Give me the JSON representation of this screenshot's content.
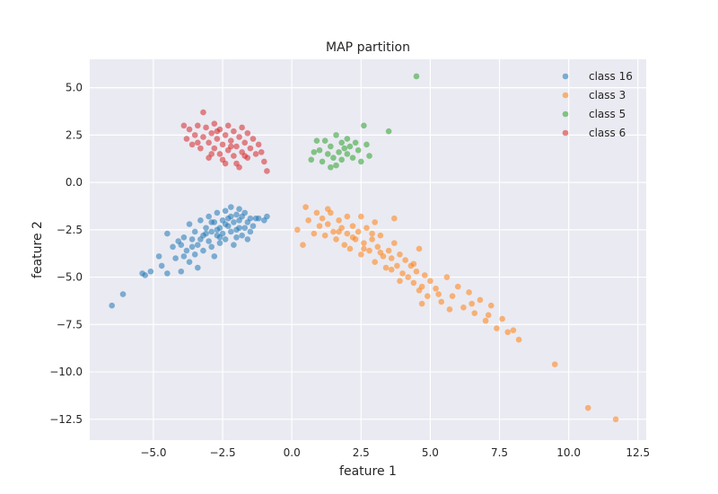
{
  "chart_data": {
    "type": "scatter",
    "title": "MAP partition",
    "xlabel": "feature 1",
    "ylabel": "feature 2",
    "xlim": [
      -7.3,
      12.8
    ],
    "ylim": [
      -13.6,
      6.5
    ],
    "xticks": [
      -5.0,
      -2.5,
      0.0,
      2.5,
      5.0,
      7.5,
      10.0,
      12.5
    ],
    "xtick_labels": [
      "−5.0",
      "−2.5",
      "0.0",
      "2.5",
      "5.0",
      "7.5",
      "10.0",
      "12.5"
    ],
    "yticks": [
      5.0,
      2.5,
      0.0,
      -2.5,
      -5.0,
      -7.5,
      -10.0,
      -12.5
    ],
    "ytick_labels": [
      "5.0",
      "2.5",
      "0.0",
      "−2.5",
      "−5.0",
      "−7.5",
      "−10.0",
      "−12.5"
    ],
    "grid": true,
    "legend_position": "top-right",
    "series": [
      {
        "name": "class 16",
        "color": "#1f77b4",
        "points": [
          [
            -6.5,
            -6.5
          ],
          [
            -6.1,
            -5.9
          ],
          [
            -5.4,
            -4.8
          ],
          [
            -5.3,
            -4.9
          ],
          [
            -5.1,
            -4.7
          ],
          [
            -4.8,
            -3.9
          ],
          [
            -4.7,
            -4.4
          ],
          [
            -4.5,
            -4.8
          ],
          [
            -4.5,
            -2.7
          ],
          [
            -4.3,
            -3.4
          ],
          [
            -4.2,
            -4.0
          ],
          [
            -4.1,
            -3.1
          ],
          [
            -4.0,
            -4.7
          ],
          [
            -3.9,
            -2.9
          ],
          [
            -3.8,
            -3.6
          ],
          [
            -3.7,
            -4.2
          ],
          [
            -3.7,
            -2.2
          ],
          [
            -3.6,
            -3.0
          ],
          [
            -3.5,
            -3.8
          ],
          [
            -3.5,
            -2.6
          ],
          [
            -3.4,
            -4.5
          ],
          [
            -3.4,
            -3.3
          ],
          [
            -3.3,
            -2.0
          ],
          [
            -3.2,
            -2.8
          ],
          [
            -3.2,
            -3.6
          ],
          [
            -3.1,
            -2.4
          ],
          [
            -3.0,
            -3.1
          ],
          [
            -3.0,
            -1.8
          ],
          [
            -2.9,
            -2.6
          ],
          [
            -2.9,
            -3.4
          ],
          [
            -2.8,
            -2.1
          ],
          [
            -2.8,
            -3.9
          ],
          [
            -2.7,
            -2.8
          ],
          [
            -2.7,
            -1.6
          ],
          [
            -2.6,
            -2.4
          ],
          [
            -2.6,
            -3.2
          ],
          [
            -2.5,
            -2.0
          ],
          [
            -2.5,
            -2.7
          ],
          [
            -2.4,
            -1.5
          ],
          [
            -2.4,
            -3.0
          ],
          [
            -2.3,
            -2.3
          ],
          [
            -2.3,
            -1.9
          ],
          [
            -2.2,
            -2.6
          ],
          [
            -2.2,
            -1.3
          ],
          [
            -2.1,
            -2.1
          ],
          [
            -2.1,
            -3.3
          ],
          [
            -2.0,
            -1.7
          ],
          [
            -2.0,
            -2.5
          ],
          [
            -1.9,
            -2.0
          ],
          [
            -1.9,
            -1.4
          ],
          [
            -1.8,
            -2.8
          ],
          [
            -1.8,
            -1.8
          ],
          [
            -1.7,
            -2.4
          ],
          [
            -1.7,
            -1.6
          ],
          [
            -1.6,
            -2.1
          ],
          [
            -1.6,
            -3.0
          ],
          [
            -1.5,
            -1.9
          ],
          [
            -1.5,
            -2.6
          ],
          [
            -1.4,
            -2.3
          ],
          [
            -1.3,
            -1.9
          ],
          [
            -2.4,
            -2.2
          ],
          [
            -2.6,
            -2.9
          ],
          [
            -2.9,
            -2.1
          ],
          [
            -3.3,
            -3.0
          ],
          [
            -3.6,
            -3.4
          ],
          [
            -2.2,
            -1.8
          ],
          [
            -2.0,
            -2.9
          ],
          [
            -1.9,
            -2.4
          ],
          [
            -2.7,
            -2.5
          ],
          [
            -3.1,
            -2.7
          ],
          [
            -1.2,
            -1.9
          ],
          [
            -1.0,
            -2.0
          ],
          [
            -0.9,
            -1.8
          ],
          [
            -4.0,
            -3.3
          ],
          [
            -3.9,
            -3.9
          ]
        ]
      },
      {
        "name": "class 3",
        "color": "#ff7f0e",
        "points": [
          [
            0.2,
            -2.5
          ],
          [
            0.4,
            -3.3
          ],
          [
            0.5,
            -1.3
          ],
          [
            0.6,
            -2.0
          ],
          [
            0.8,
            -2.7
          ],
          [
            0.9,
            -1.6
          ],
          [
            1.0,
            -2.3
          ],
          [
            1.1,
            -1.9
          ],
          [
            1.2,
            -2.8
          ],
          [
            1.3,
            -2.2
          ],
          [
            1.4,
            -1.6
          ],
          [
            1.5,
            -2.6
          ],
          [
            1.6,
            -3.0
          ],
          [
            1.7,
            -2.0
          ],
          [
            1.8,
            -2.4
          ],
          [
            1.9,
            -3.3
          ],
          [
            2.0,
            -2.7
          ],
          [
            2.0,
            -1.8
          ],
          [
            2.1,
            -3.5
          ],
          [
            2.2,
            -2.3
          ],
          [
            2.3,
            -3.0
          ],
          [
            2.4,
            -2.6
          ],
          [
            2.5,
            -3.8
          ],
          [
            2.6,
            -3.2
          ],
          [
            2.7,
            -2.4
          ],
          [
            2.8,
            -3.6
          ],
          [
            2.9,
            -3.0
          ],
          [
            3.0,
            -4.2
          ],
          [
            3.1,
            -3.4
          ],
          [
            3.2,
            -2.8
          ],
          [
            3.3,
            -3.9
          ],
          [
            3.4,
            -4.5
          ],
          [
            3.5,
            -3.6
          ],
          [
            3.6,
            -4.0
          ],
          [
            3.7,
            -3.2
          ],
          [
            3.8,
            -4.4
          ],
          [
            3.9,
            -3.8
          ],
          [
            4.0,
            -4.8
          ],
          [
            4.1,
            -4.1
          ],
          [
            4.2,
            -5.0
          ],
          [
            4.3,
            -4.4
          ],
          [
            4.4,
            -5.3
          ],
          [
            4.5,
            -4.7
          ],
          [
            4.6,
            -3.5
          ],
          [
            4.7,
            -5.5
          ],
          [
            4.8,
            -4.9
          ],
          [
            4.9,
            -6.0
          ],
          [
            5.0,
            -5.2
          ],
          [
            5.2,
            -5.6
          ],
          [
            5.4,
            -6.3
          ],
          [
            5.6,
            -5.0
          ],
          [
            5.8,
            -6.0
          ],
          [
            6.0,
            -5.5
          ],
          [
            6.2,
            -6.6
          ],
          [
            6.4,
            -5.8
          ],
          [
            6.6,
            -6.9
          ],
          [
            6.8,
            -6.2
          ],
          [
            7.0,
            -7.3
          ],
          [
            7.2,
            -6.5
          ],
          [
            7.4,
            -7.7
          ],
          [
            7.6,
            -7.2
          ],
          [
            7.8,
            -7.9
          ],
          [
            8.0,
            -7.8
          ],
          [
            8.2,
            -8.3
          ],
          [
            2.6,
            -3.5
          ],
          [
            2.2,
            -2.9
          ],
          [
            1.7,
            -2.6
          ],
          [
            3.2,
            -3.7
          ],
          [
            2.9,
            -2.7
          ],
          [
            3.6,
            -4.6
          ],
          [
            4.4,
            -4.3
          ],
          [
            4.6,
            -5.7
          ],
          [
            5.3,
            -5.9
          ],
          [
            5.7,
            -6.7
          ],
          [
            6.5,
            -6.4
          ],
          [
            7.1,
            -7.0
          ],
          [
            9.5,
            -9.6
          ],
          [
            10.7,
            -11.9
          ],
          [
            11.7,
            -12.5
          ],
          [
            4.7,
            -6.4
          ],
          [
            3.9,
            -5.2
          ],
          [
            1.3,
            -1.4
          ],
          [
            2.5,
            -1.8
          ],
          [
            3.0,
            -2.1
          ],
          [
            3.7,
            -1.9
          ]
        ]
      },
      {
        "name": "class 5",
        "color": "#2ca02c",
        "points": [
          [
            0.7,
            1.2
          ],
          [
            0.8,
            1.6
          ],
          [
            0.9,
            2.2
          ],
          [
            1.0,
            1.7
          ],
          [
            1.1,
            1.1
          ],
          [
            1.2,
            2.2
          ],
          [
            1.3,
            1.5
          ],
          [
            1.4,
            0.8
          ],
          [
            1.4,
            1.9
          ],
          [
            1.5,
            1.3
          ],
          [
            1.6,
            2.5
          ],
          [
            1.6,
            0.9
          ],
          [
            1.7,
            1.6
          ],
          [
            1.8,
            2.1
          ],
          [
            1.8,
            1.2
          ],
          [
            1.9,
            1.8
          ],
          [
            2.0,
            2.3
          ],
          [
            2.0,
            1.5
          ],
          [
            2.1,
            1.9
          ],
          [
            2.2,
            1.3
          ],
          [
            2.3,
            2.1
          ],
          [
            2.4,
            1.7
          ],
          [
            2.5,
            1.1
          ],
          [
            2.6,
            3.0
          ],
          [
            2.7,
            2.0
          ],
          [
            2.8,
            1.4
          ],
          [
            3.5,
            2.7
          ],
          [
            4.5,
            5.6
          ]
        ]
      },
      {
        "name": "class 6",
        "color": "#d62728",
        "points": [
          [
            -3.9,
            3.0
          ],
          [
            -3.8,
            2.3
          ],
          [
            -3.7,
            2.8
          ],
          [
            -3.6,
            2.0
          ],
          [
            -3.5,
            2.5
          ],
          [
            -3.4,
            3.0
          ],
          [
            -3.3,
            1.8
          ],
          [
            -3.2,
            2.4
          ],
          [
            -3.2,
            3.7
          ],
          [
            -3.1,
            2.9
          ],
          [
            -3.0,
            2.1
          ],
          [
            -3.0,
            1.3
          ],
          [
            -2.9,
            2.6
          ],
          [
            -2.8,
            1.8
          ],
          [
            -2.8,
            3.1
          ],
          [
            -2.7,
            2.3
          ],
          [
            -2.6,
            1.5
          ],
          [
            -2.6,
            2.8
          ],
          [
            -2.5,
            2.0
          ],
          [
            -2.5,
            1.2
          ],
          [
            -2.4,
            2.5
          ],
          [
            -2.3,
            1.7
          ],
          [
            -2.3,
            3.0
          ],
          [
            -2.2,
            2.2
          ],
          [
            -2.1,
            1.4
          ],
          [
            -2.1,
            2.7
          ],
          [
            -2.0,
            1.9
          ],
          [
            -2.0,
            1.0
          ],
          [
            -1.9,
            2.4
          ],
          [
            -1.8,
            1.6
          ],
          [
            -1.8,
            2.9
          ],
          [
            -1.7,
            2.1
          ],
          [
            -1.6,
            1.3
          ],
          [
            -1.6,
            2.6
          ],
          [
            -1.5,
            1.8
          ],
          [
            -1.4,
            2.3
          ],
          [
            -1.3,
            1.5
          ],
          [
            -1.2,
            2.0
          ],
          [
            -1.1,
            1.6
          ],
          [
            -1.0,
            1.1
          ],
          [
            -0.9,
            0.6
          ],
          [
            -1.9,
            0.8
          ],
          [
            -2.4,
            1.0
          ],
          [
            -2.9,
            1.5
          ],
          [
            -3.4,
            2.1
          ],
          [
            -2.7,
            2.7
          ],
          [
            -2.2,
            1.9
          ],
          [
            -1.7,
            1.4
          ]
        ]
      }
    ]
  }
}
